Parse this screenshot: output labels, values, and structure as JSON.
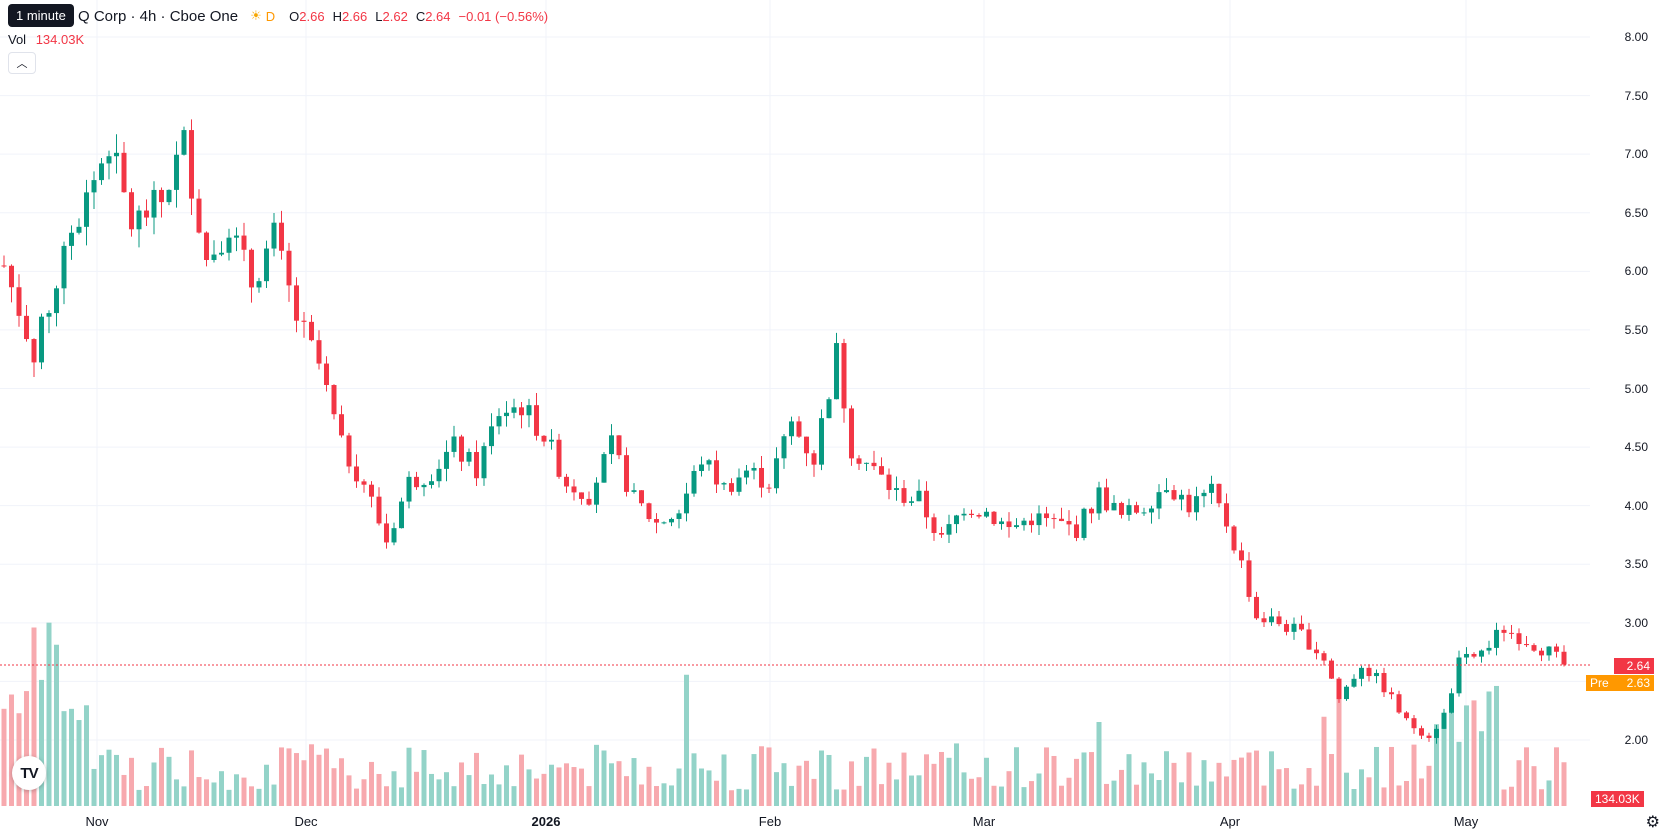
{
  "tooltip": "1 minute",
  "legend": {
    "symbol": "Q Corp · 4h · Cboe One",
    "session_icon": "sun-icon",
    "flag": "D",
    "o_label": "O",
    "o_value": "2.66",
    "h_label": "H",
    "h_value": "2.66",
    "l_label": "L",
    "l_value": "2.62",
    "c_label": "C",
    "c_value": "2.64",
    "change": "−0.01 (−0.56%)"
  },
  "volume": {
    "label": "Vol",
    "value": "134.03K"
  },
  "price_badge": {
    "value": "2.64",
    "color": "#f23645"
  },
  "pre_badge": {
    "label": "Pre",
    "value": "2.63",
    "color": "#ff9800"
  },
  "volume_badge": {
    "value": "134.03K",
    "color": "#f23645"
  },
  "colors": {
    "up": "#089981",
    "down": "#f23645",
    "up_vol": "#93d3c8",
    "down_vol": "#f7a9ae"
  },
  "chart_data": {
    "type": "candlestick",
    "y_ticks": [
      "8.00",
      "7.50",
      "7.00",
      "6.50",
      "6.00",
      "5.50",
      "5.00",
      "4.50",
      "4.00",
      "3.50",
      "3.00",
      "2.50",
      "2.00"
    ],
    "ylim": [
      1.5,
      8.1
    ],
    "x_labels": [
      "Nov",
      "Dec",
      "2026",
      "Feb",
      "Mar",
      "Apr",
      "May"
    ],
    "current_price": 2.64,
    "anchors": [
      [
        0,
        6.05
      ],
      [
        4,
        5.3
      ],
      [
        9,
        6.3
      ],
      [
        14,
        7.1
      ],
      [
        17,
        6.4
      ],
      [
        21,
        6.6
      ],
      [
        24,
        7.1
      ],
      [
        27,
        6.1
      ],
      [
        30,
        6.4
      ],
      [
        33,
        5.9
      ],
      [
        36,
        6.3
      ],
      [
        39,
        5.6
      ],
      [
        42,
        5.2
      ],
      [
        45,
        4.5
      ],
      [
        48,
        4.2
      ],
      [
        51,
        3.7
      ],
      [
        54,
        4.2
      ],
      [
        57,
        4.3
      ],
      [
        60,
        4.5
      ],
      [
        63,
        4.3
      ],
      [
        66,
        4.8
      ],
      [
        69,
        4.85
      ],
      [
        72,
        4.6
      ],
      [
        75,
        4.2
      ],
      [
        78,
        4.1
      ],
      [
        81,
        4.5
      ],
      [
        84,
        4.05
      ],
      [
        87,
        3.85
      ],
      [
        90,
        3.95
      ],
      [
        93,
        4.4
      ],
      [
        96,
        4.15
      ],
      [
        99,
        4.3
      ],
      [
        102,
        4.2
      ],
      [
        105,
        4.7
      ],
      [
        108,
        4.4
      ],
      [
        111,
        5.3
      ],
      [
        113,
        4.5
      ],
      [
        116,
        4.3
      ],
      [
        119,
        4.1
      ],
      [
        122,
        4.05
      ],
      [
        125,
        3.7
      ],
      [
        128,
        4.0
      ],
      [
        131,
        3.95
      ],
      [
        134,
        3.8
      ],
      [
        137,
        3.9
      ],
      [
        140,
        3.85
      ],
      [
        143,
        3.8
      ],
      [
        146,
        4.1
      ],
      [
        149,
        3.9
      ],
      [
        152,
        4.0
      ],
      [
        155,
        4.2
      ],
      [
        158,
        4.0
      ],
      [
        161,
        4.1
      ],
      [
        163,
        3.85
      ],
      [
        165,
        3.5
      ],
      [
        167,
        3.05
      ],
      [
        170,
        3.0
      ],
      [
        173,
        2.9
      ],
      [
        176,
        2.7
      ],
      [
        178,
        2.35
      ],
      [
        181,
        2.65
      ],
      [
        184,
        2.45
      ],
      [
        187,
        2.15
      ],
      [
        190,
        2.05
      ],
      [
        192,
        2.2
      ],
      [
        194,
        2.65
      ],
      [
        197,
        2.75
      ],
      [
        200,
        2.95
      ],
      [
        203,
        2.85
      ],
      [
        206,
        2.75
      ],
      [
        208,
        2.64
      ]
    ],
    "volume_axis_max": 200
  }
}
